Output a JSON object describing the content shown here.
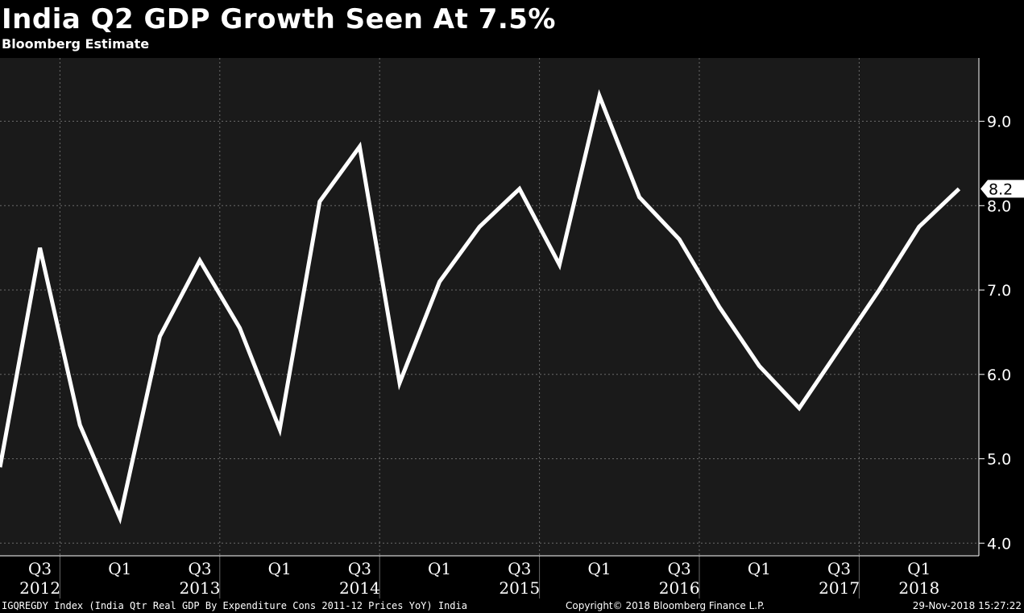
{
  "chart_data": {
    "type": "line",
    "title": "India Q2 GDP Growth Seen At 7.5%",
    "subtitle": "Bloomberg Estimate",
    "x": [
      "2012Q2",
      "2012Q3",
      "2012Q4",
      "2013Q1",
      "2013Q2",
      "2013Q3",
      "2013Q4",
      "2014Q1",
      "2014Q2",
      "2014Q3",
      "2014Q4",
      "2015Q1",
      "2015Q2",
      "2015Q3",
      "2015Q4",
      "2016Q1",
      "2016Q2",
      "2016Q3",
      "2016Q4",
      "2017Q1",
      "2017Q2",
      "2017Q3",
      "2017Q4",
      "2018Q1",
      "2018Q2"
    ],
    "series": [
      {
        "values": [
          4.9,
          7.5,
          5.4,
          4.3,
          6.45,
          7.35,
          6.55,
          5.35,
          8.05,
          8.7,
          5.9,
          7.1,
          7.75,
          8.2,
          7.3,
          9.3,
          8.1,
          7.6,
          6.8,
          6.1,
          5.6,
          6.3,
          7.0,
          7.75,
          8.2
        ],
        "color": "#ffffff",
        "last_value_label": "8.2"
      }
    ],
    "y_ticks": [
      "4.0",
      "5.0",
      "6.0",
      "7.0",
      "8.0",
      "9.0"
    ],
    "ylim": [
      3.85,
      9.75
    ],
    "y_axis_side": "right",
    "x_quarter_labels": [
      "Q3",
      "Q1",
      "Q3",
      "Q1",
      "Q3",
      "Q1",
      "Q3",
      "Q1",
      "Q3",
      "Q1",
      "Q3",
      "Q1"
    ],
    "x_year_labels": [
      "2012",
      "2013",
      "2014",
      "2015",
      "2016",
      "2017",
      "2018"
    ],
    "grid": true,
    "plot_background": "#1a1a1a"
  },
  "footer": {
    "source": "IGQREGDY Index (India Qtr Real GDP By Expenditure Cons 2011-12 Prices YoY) India",
    "copyright": "Copyright© 2018 Bloomberg Finance L.P.",
    "timestamp": "29-Nov-2018 15:27:22"
  }
}
